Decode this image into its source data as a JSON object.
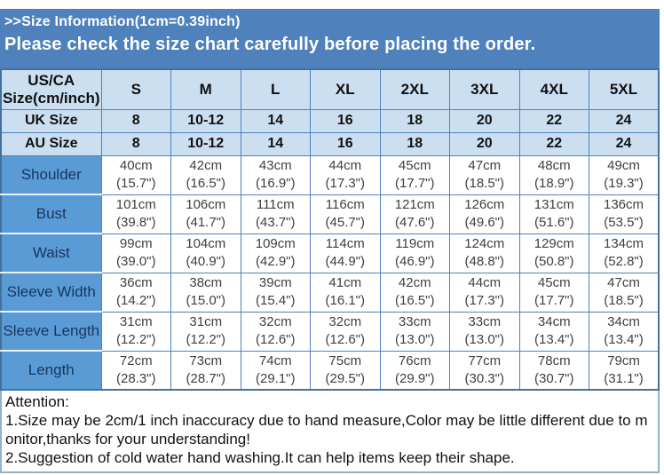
{
  "header": {
    "size_info": ">>Size Information(1cm=0.39inch)",
    "notice": "Please check the size chart carefully before placing the order."
  },
  "table": {
    "corner_line1": "US/CA",
    "corner_line2": "Size(cm/inch)",
    "size_columns": [
      "S",
      "M",
      "L",
      "XL",
      "2XL",
      "3XL",
      "4XL",
      "5XL"
    ],
    "intl_rows": [
      {
        "label": "UK Size",
        "values": [
          "8",
          "10-12",
          "14",
          "16",
          "18",
          "20",
          "22",
          "24"
        ]
      },
      {
        "label": "AU Size",
        "values": [
          "8",
          "10-12",
          "14",
          "16",
          "18",
          "20",
          "22",
          "24"
        ]
      }
    ],
    "measurement_rows": [
      {
        "label": "Shoulder",
        "values": [
          [
            "40cm",
            "(15.7\")"
          ],
          [
            "42cm",
            "(16.5\")"
          ],
          [
            "43cm",
            "(16.9\")"
          ],
          [
            "44cm",
            "(17.3\")"
          ],
          [
            "45cm",
            "(17.7\")"
          ],
          [
            "47cm",
            "(18.5\")"
          ],
          [
            "48cm",
            "(18.9\")"
          ],
          [
            "49cm",
            "(19.3\")"
          ]
        ]
      },
      {
        "label": "Bust",
        "values": [
          [
            "101cm",
            "(39.8\")"
          ],
          [
            "106cm",
            "(41.7\")"
          ],
          [
            "111cm",
            "(43.7\")"
          ],
          [
            "116cm",
            "(45.7\")"
          ],
          [
            "121cm",
            "(47.6\")"
          ],
          [
            "126cm",
            "(49.6\")"
          ],
          [
            "131cm",
            "(51.6\")"
          ],
          [
            "136cm",
            "(53.5\")"
          ]
        ]
      },
      {
        "label": "Waist",
        "values": [
          [
            "99cm",
            "(39.0\")"
          ],
          [
            "104cm",
            "(40.9\")"
          ],
          [
            "109cm",
            "(42.9\")"
          ],
          [
            "114cm",
            "(44.9\")"
          ],
          [
            "119cm",
            "(46.9\")"
          ],
          [
            "124cm",
            "(48.8\")"
          ],
          [
            "129cm",
            "(50.8\")"
          ],
          [
            "134cm",
            "(52.8\")"
          ]
        ]
      },
      {
        "label": "Sleeve Width",
        "values": [
          [
            "36cm",
            "(14.2\")"
          ],
          [
            "38cm",
            "(15.0\")"
          ],
          [
            "39cm",
            "(15.4\")"
          ],
          [
            "41cm",
            "(16.1\")"
          ],
          [
            "42cm",
            "(16.5\")"
          ],
          [
            "44cm",
            "(17.3\")"
          ],
          [
            "45cm",
            "(17.7\")"
          ],
          [
            "47cm",
            "(18.5\")"
          ]
        ]
      },
      {
        "label": "Sleeve Length",
        "values": [
          [
            "31cm",
            "(12.2\")"
          ],
          [
            "31cm",
            "(12.2\")"
          ],
          [
            "32cm",
            "(12.6\")"
          ],
          [
            "32cm",
            "(12.6\")"
          ],
          [
            "33cm",
            "(13.0\")"
          ],
          [
            "33cm",
            "(13.0\")"
          ],
          [
            "34cm",
            "(13.4\")"
          ],
          [
            "34cm",
            "(13.4\")"
          ]
        ]
      },
      {
        "label": "Length",
        "values": [
          [
            "72cm",
            "(28.3\")"
          ],
          [
            "73cm",
            "(28.7\")"
          ],
          [
            "74cm",
            "(29.1\")"
          ],
          [
            "75cm",
            "(29.5\")"
          ],
          [
            "76cm",
            "(29.9\")"
          ],
          [
            "77cm",
            "(30.3\")"
          ],
          [
            "78cm",
            "(30.7\")"
          ],
          [
            "79cm",
            "(31.1\")"
          ]
        ]
      }
    ]
  },
  "attention": {
    "title": "Attention:",
    "note1": "1.Size may be 2cm/1 inch inaccuracy due to hand measure,Color may be little different due to monitor,thanks for your understanding!",
    "note2": "2.Suggestion of cold water hand washing.It can help items keep their shape."
  },
  "colors": {
    "banner_blue": "#4f81bd",
    "label_blue": "#5b9bd5",
    "header_light_blue": "#cbdff1",
    "border_blue": "#4f81bd",
    "outer_border_blue": "#41719c",
    "attention_border": "#8fb2cd"
  }
}
